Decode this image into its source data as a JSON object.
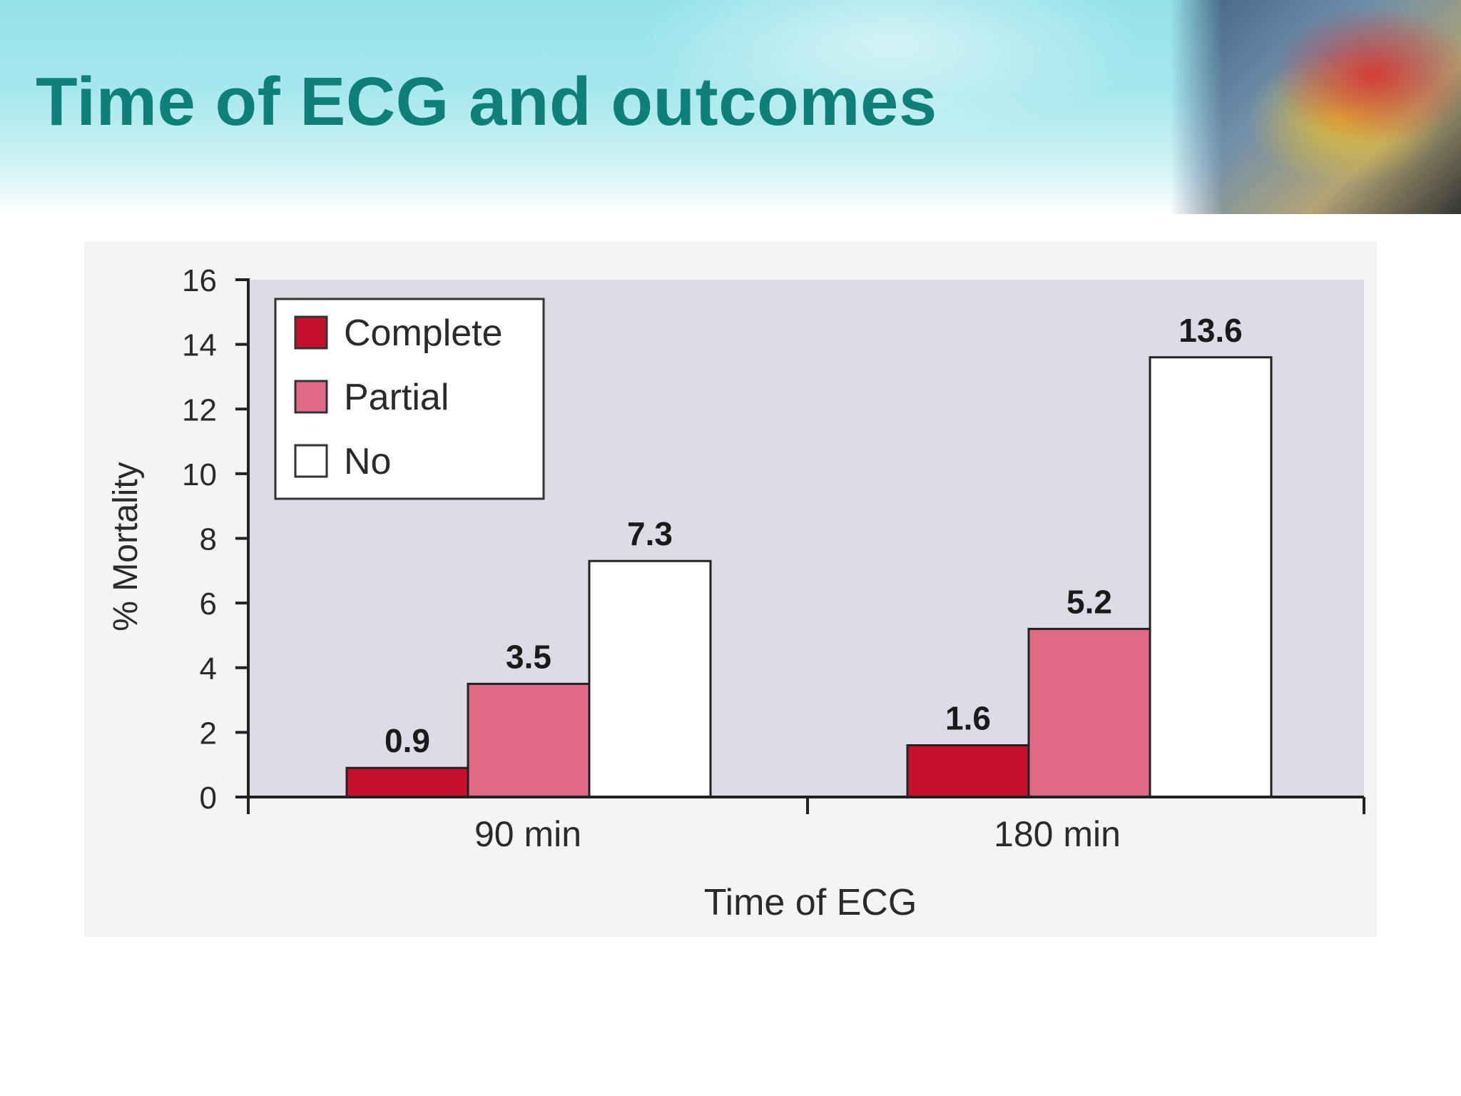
{
  "slide": {
    "title": "Time of ECG and outcomes"
  },
  "chart_data": {
    "type": "bar",
    "categories": [
      "90 min",
      "180 min"
    ],
    "series": [
      {
        "name": "Complete",
        "values": [
          0.9,
          1.6
        ],
        "color": "#c8102e"
      },
      {
        "name": "Partial",
        "values": [
          3.5,
          5.2
        ],
        "color": "#e06a86"
      },
      {
        "name": "No",
        "values": [
          7.3,
          13.6
        ],
        "color": "#ffffff"
      }
    ],
    "data_labels": [
      [
        "0.9",
        "1.6"
      ],
      [
        "3.5",
        "5.2"
      ],
      [
        "7.3",
        "13.6"
      ]
    ],
    "title": "",
    "xlabel": "Time of ECG",
    "ylabel": "% Mortality",
    "ylim": [
      0,
      16
    ],
    "yticks": [
      0,
      2,
      4,
      6,
      8,
      10,
      12,
      14,
      16
    ],
    "legend_position": "top-left",
    "grid": false,
    "plot_background": "#dcdce6"
  }
}
